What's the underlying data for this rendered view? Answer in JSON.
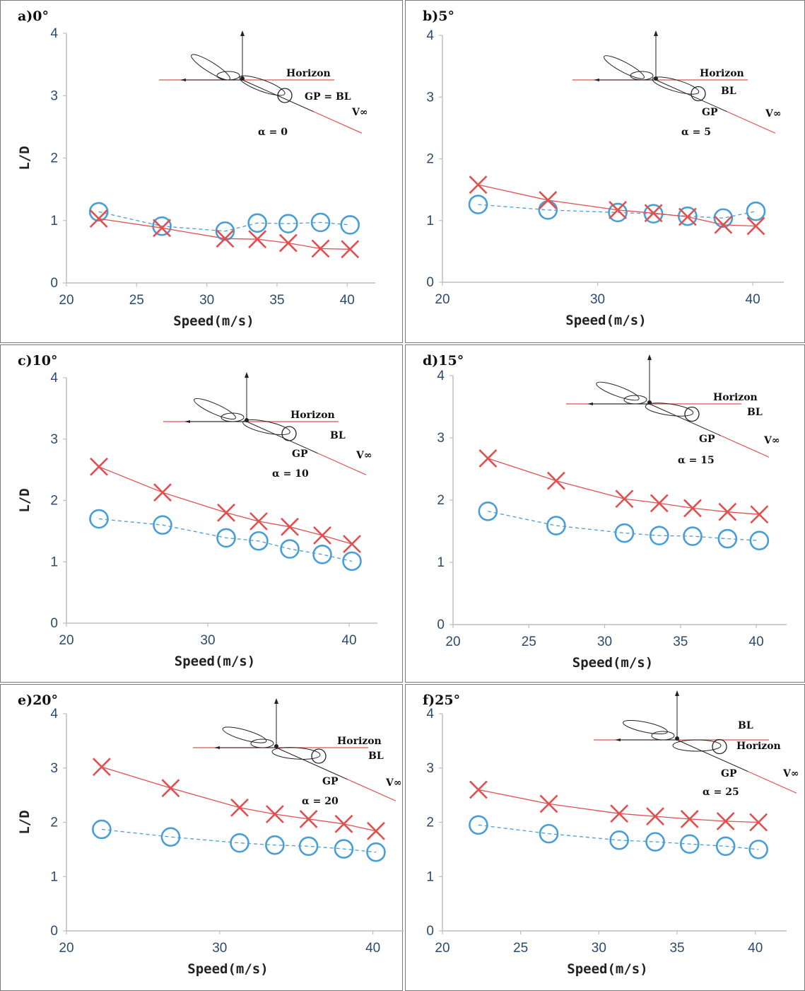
{
  "colors": {
    "circle_series": "#4a9ed6",
    "cross_series": "#e05050",
    "axis": "#bdbdbd"
  },
  "chart_data": [
    {
      "type": "scatter",
      "title": "a)0°",
      "xlabel": "Speed(m/s)",
      "ylabel": "L/D",
      "xlim": [
        20,
        42
      ],
      "ylim": [
        0,
        4
      ],
      "xticks": [
        "20",
        "25",
        "30",
        "35",
        "40"
      ],
      "yticks": [
        "0",
        "1",
        "2",
        "3",
        "4"
      ],
      "series": [
        {
          "marker": "circle",
          "line": "dashed",
          "x": [
            22.3,
            26.8,
            31.3,
            33.6,
            35.8,
            38.1,
            40.2
          ],
          "y": [
            1.14,
            0.91,
            0.83,
            0.96,
            0.95,
            0.97,
            0.93
          ]
        },
        {
          "marker": "cross",
          "line": "solid",
          "x": [
            22.3,
            26.8,
            31.3,
            33.6,
            35.8,
            38.1,
            40.2
          ],
          "y": [
            1.03,
            0.88,
            0.71,
            0.7,
            0.64,
            0.55,
            0.54
          ]
        }
      ],
      "diagram": {
        "labels": [
          "Horizon",
          "GP = BL",
          "V∞",
          "α = 0"
        ]
      }
    },
    {
      "type": "scatter",
      "title": "b)5°",
      "xlabel": "Speed(m/s)",
      "ylabel": "",
      "xlim": [
        20,
        42
      ],
      "ylim": [
        0,
        4
      ],
      "xticks": [
        "20",
        "30",
        "40"
      ],
      "yticks": [
        "0",
        "1",
        "2",
        "3",
        "4"
      ],
      "series": [
        {
          "marker": "circle",
          "line": "dashed",
          "x": [
            22.3,
            26.8,
            31.3,
            33.6,
            35.8,
            38.1,
            40.2
          ],
          "y": [
            1.26,
            1.17,
            1.13,
            1.11,
            1.07,
            1.04,
            1.15
          ]
        },
        {
          "marker": "cross",
          "line": "solid",
          "x": [
            22.3,
            26.8,
            31.3,
            33.6,
            35.8,
            38.1,
            40.2
          ],
          "y": [
            1.58,
            1.33,
            1.17,
            1.12,
            1.06,
            0.93,
            0.91
          ]
        }
      ],
      "diagram": {
        "labels": [
          "Horizon",
          "BL",
          "GP",
          "V∞",
          "α = 5"
        ]
      }
    },
    {
      "type": "scatter",
      "title": "c)10°",
      "xlabel": "Speed(m/s)",
      "ylabel": "L/D",
      "xlim": [
        20,
        42
      ],
      "ylim": [
        0,
        4
      ],
      "xticks": [
        "20",
        "30",
        "40"
      ],
      "yticks": [
        "0",
        "1",
        "2",
        "3",
        "4"
      ],
      "series": [
        {
          "marker": "circle",
          "line": "dashed",
          "x": [
            22.3,
            26.8,
            31.3,
            33.6,
            35.8,
            38.1,
            40.2
          ],
          "y": [
            1.7,
            1.6,
            1.39,
            1.34,
            1.21,
            1.12,
            1.01
          ]
        },
        {
          "marker": "cross",
          "line": "solid",
          "x": [
            22.3,
            26.8,
            31.3,
            33.6,
            35.8,
            38.1,
            40.2
          ],
          "y": [
            2.55,
            2.13,
            1.8,
            1.66,
            1.57,
            1.43,
            1.29
          ]
        }
      ],
      "diagram": {
        "labels": [
          "Horizon",
          "BL",
          "GP",
          "V∞",
          "α = 10"
        ]
      }
    },
    {
      "type": "scatter",
      "title": "d)15°",
      "xlabel": "Speed(m/s)",
      "ylabel": "",
      "xlim": [
        20,
        42
      ],
      "ylim": [
        0,
        4
      ],
      "xticks": [
        "20",
        "25",
        "30",
        "35",
        "40"
      ],
      "yticks": [
        "0",
        "1",
        "2",
        "3",
        "4"
      ],
      "series": [
        {
          "marker": "circle",
          "line": "dashed",
          "x": [
            22.3,
            26.8,
            31.3,
            33.6,
            35.8,
            38.1,
            40.2
          ],
          "y": [
            1.82,
            1.59,
            1.47,
            1.43,
            1.42,
            1.38,
            1.35
          ]
        },
        {
          "marker": "cross",
          "line": "solid",
          "x": [
            22.3,
            26.8,
            31.3,
            33.6,
            35.8,
            38.1,
            40.2
          ],
          "y": [
            2.67,
            2.31,
            2.02,
            1.95,
            1.87,
            1.81,
            1.77
          ]
        }
      ],
      "diagram": {
        "labels": [
          "Horizon",
          "BL",
          "GP",
          "V∞",
          "α = 15"
        ]
      }
    },
    {
      "type": "scatter",
      "title": "e)20°",
      "xlabel": "Speed(m/s)",
      "ylabel": "L/D",
      "xlim": [
        20,
        42
      ],
      "ylim": [
        0,
        4
      ],
      "xticks": [
        "20",
        "30",
        "40"
      ],
      "yticks": [
        "0",
        "1",
        "2",
        "3",
        "4"
      ],
      "series": [
        {
          "marker": "circle",
          "line": "dashed",
          "x": [
            22.3,
            26.8,
            31.3,
            33.6,
            35.8,
            38.1,
            40.2
          ],
          "y": [
            1.87,
            1.73,
            1.62,
            1.58,
            1.56,
            1.51,
            1.45
          ]
        },
        {
          "marker": "cross",
          "line": "solid",
          "x": [
            22.3,
            26.8,
            31.3,
            33.6,
            35.8,
            38.1,
            40.2
          ],
          "y": [
            3.02,
            2.63,
            2.27,
            2.15,
            2.06,
            1.97,
            1.84
          ]
        }
      ],
      "diagram": {
        "labels": [
          "Horizon",
          "BL",
          "GP",
          "V∞",
          "α = 20"
        ]
      }
    },
    {
      "type": "scatter",
      "title": "f)25°",
      "xlabel": "Speed(m/s)",
      "ylabel": "",
      "xlim": [
        20,
        42
      ],
      "ylim": [
        0,
        4
      ],
      "xticks": [
        "20",
        "25",
        "30",
        "35",
        "40"
      ],
      "yticks": [
        "0",
        "1",
        "2",
        "3",
        "4"
      ],
      "series": [
        {
          "marker": "circle",
          "line": "dashed",
          "x": [
            22.3,
            26.8,
            31.3,
            33.6,
            35.8,
            38.1,
            40.2
          ],
          "y": [
            1.95,
            1.79,
            1.67,
            1.64,
            1.6,
            1.56,
            1.5
          ]
        },
        {
          "marker": "cross",
          "line": "solid",
          "x": [
            22.3,
            26.8,
            31.3,
            33.6,
            35.8,
            38.1,
            40.2
          ],
          "y": [
            2.6,
            2.34,
            2.16,
            2.11,
            2.06,
            2.02,
            2.0
          ]
        }
      ],
      "diagram": {
        "labels": [
          "BL",
          "Horizon",
          "GP",
          "V∞",
          "α = 25"
        ]
      }
    }
  ]
}
